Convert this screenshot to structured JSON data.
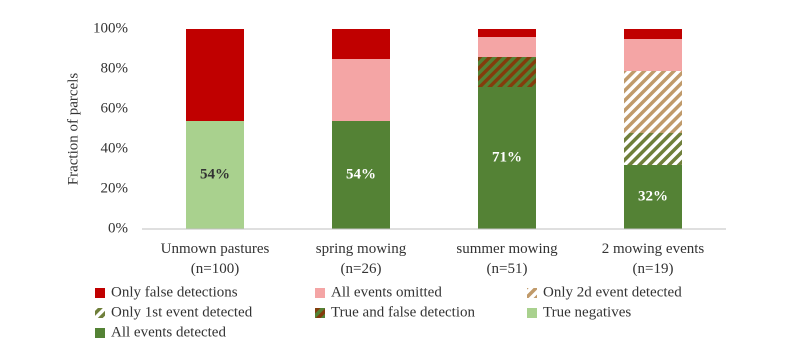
{
  "chart_data": {
    "type": "stacked_bar",
    "ylabel": "Fraction of parcels",
    "categories": [
      "Unmown pastures\n(n=100)",
      "spring mowing\n(n=26)",
      "summer mowing\n(n=51)",
      "2 mowing events\n(n=19)"
    ],
    "ylim": [
      0,
      100
    ],
    "yticks": [
      {
        "value": 0,
        "label": "0%"
      },
      {
        "value": 20,
        "label": "20%"
      },
      {
        "value": 40,
        "label": "40%"
      },
      {
        "value": 60,
        "label": "60%"
      },
      {
        "value": 80,
        "label": "80%"
      },
      {
        "value": 100,
        "label": "100%"
      }
    ],
    "grid": false,
    "legend": "bottom",
    "series": [
      {
        "name": "Only false detections",
        "color": "#c00000",
        "values": [
          46,
          15,
          4,
          5
        ]
      },
      {
        "name": "All events omitted",
        "color": "#f4a5a5",
        "values": [
          0,
          31,
          10,
          16
        ]
      },
      {
        "name": "Only 2d event detected",
        "color": "#c09a6a",
        "hatch_bg": "#ffffff",
        "values": [
          0,
          0,
          0,
          31
        ]
      },
      {
        "name": "Only 1st event detected",
        "color": "#6f7f3a",
        "hatch_bg": "#ffffff",
        "values": [
          0,
          0,
          0,
          16
        ]
      },
      {
        "name": "True and false detection",
        "color": "#843c0c",
        "hatch_bg": "#548235",
        "values": [
          0,
          0,
          15,
          0
        ]
      },
      {
        "name": "True negatives",
        "color": "#a9d18e",
        "values": [
          54,
          0,
          0,
          0
        ],
        "value_labels": [
          "54%",
          null,
          null,
          null
        ]
      },
      {
        "name": "All events detected",
        "color": "#548235",
        "values": [
          0,
          54,
          71,
          32
        ],
        "value_labels": [
          null,
          "54%",
          "71%",
          "32%"
        ]
      }
    ]
  }
}
